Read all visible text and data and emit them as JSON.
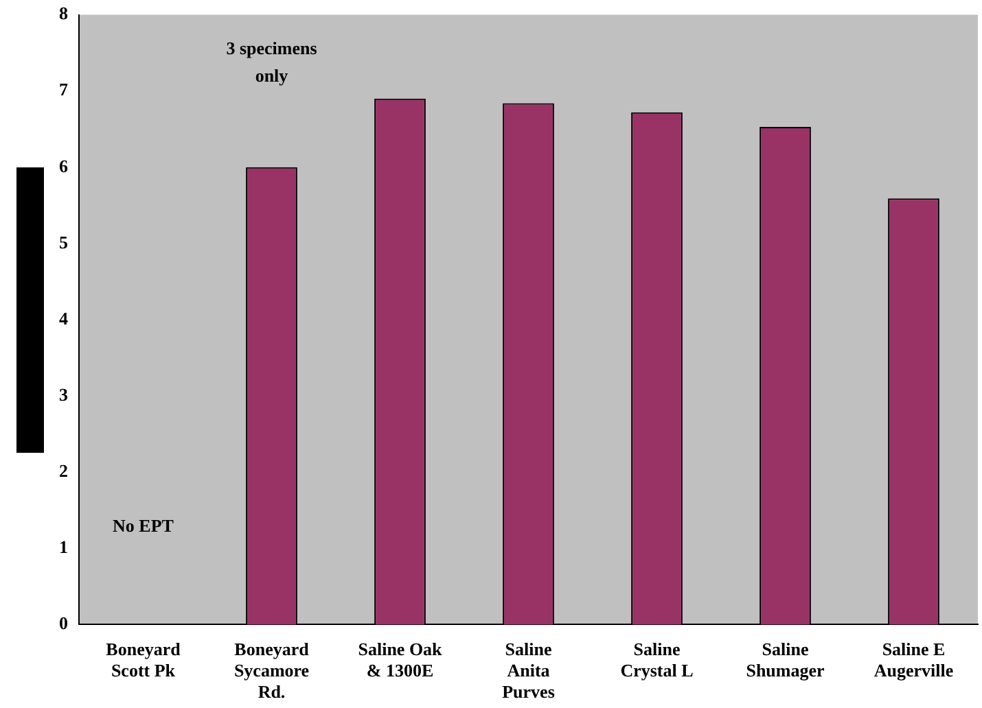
{
  "chart_data": {
    "type": "bar",
    "categories": [
      "Boneyard\nScott Pk",
      "Boneyard\nSycamore\nRd.",
      "Saline Oak\n& 1300E",
      "Saline\nAnita\nPurves",
      "Saline\nCrystal L",
      "Saline\nShumager",
      "Saline E\nAugerville"
    ],
    "values": [
      0,
      6.0,
      6.9,
      6.84,
      6.72,
      6.53,
      5.59
    ],
    "color": "#993366",
    "ylim": [
      0,
      8
    ],
    "yticks": [
      0,
      1,
      2,
      3,
      4,
      5,
      6,
      7,
      8
    ],
    "annotations": [
      "No EPT",
      "3 specimens\nonly"
    ]
  }
}
